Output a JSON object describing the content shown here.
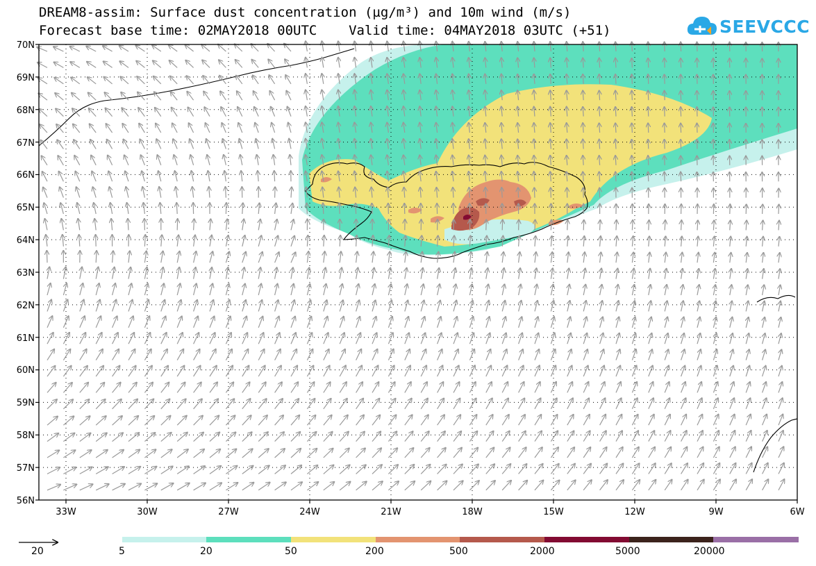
{
  "header": {
    "title_line1": "DREAM8-assim: Surface dust concentration (µg/m³) and 10m wind (m/s)",
    "title_line2": "Forecast base time: 02MAY2018 00UTC    Valid time: 04MAY2018 03UTC (+51)"
  },
  "logo": {
    "text": "SEEVCCC",
    "icon": "cloud-icon",
    "color": "#2aa8e6"
  },
  "axes": {
    "lat_labels": [
      "70N",
      "69N",
      "68N",
      "67N",
      "66N",
      "65N",
      "64N",
      "63N",
      "62N",
      "61N",
      "60N",
      "59N",
      "58N",
      "57N",
      "56N"
    ],
    "lon_labels": [
      "33W",
      "30W",
      "27W",
      "24W",
      "21W",
      "18W",
      "15W",
      "12W",
      "9W",
      "6W"
    ]
  },
  "legend": {
    "wind_ref_value": "20",
    "wind_ref_icon": "arrow-icon",
    "levels": [
      "5",
      "20",
      "50",
      "200",
      "500",
      "2000",
      "5000",
      "20000"
    ],
    "colors": [
      "#c6f1ec",
      "#5ddfbd",
      "#f2e27a",
      "#e39470",
      "#b5594c",
      "#820b32",
      "#3c231c",
      "#9a6fa6"
    ]
  }
}
